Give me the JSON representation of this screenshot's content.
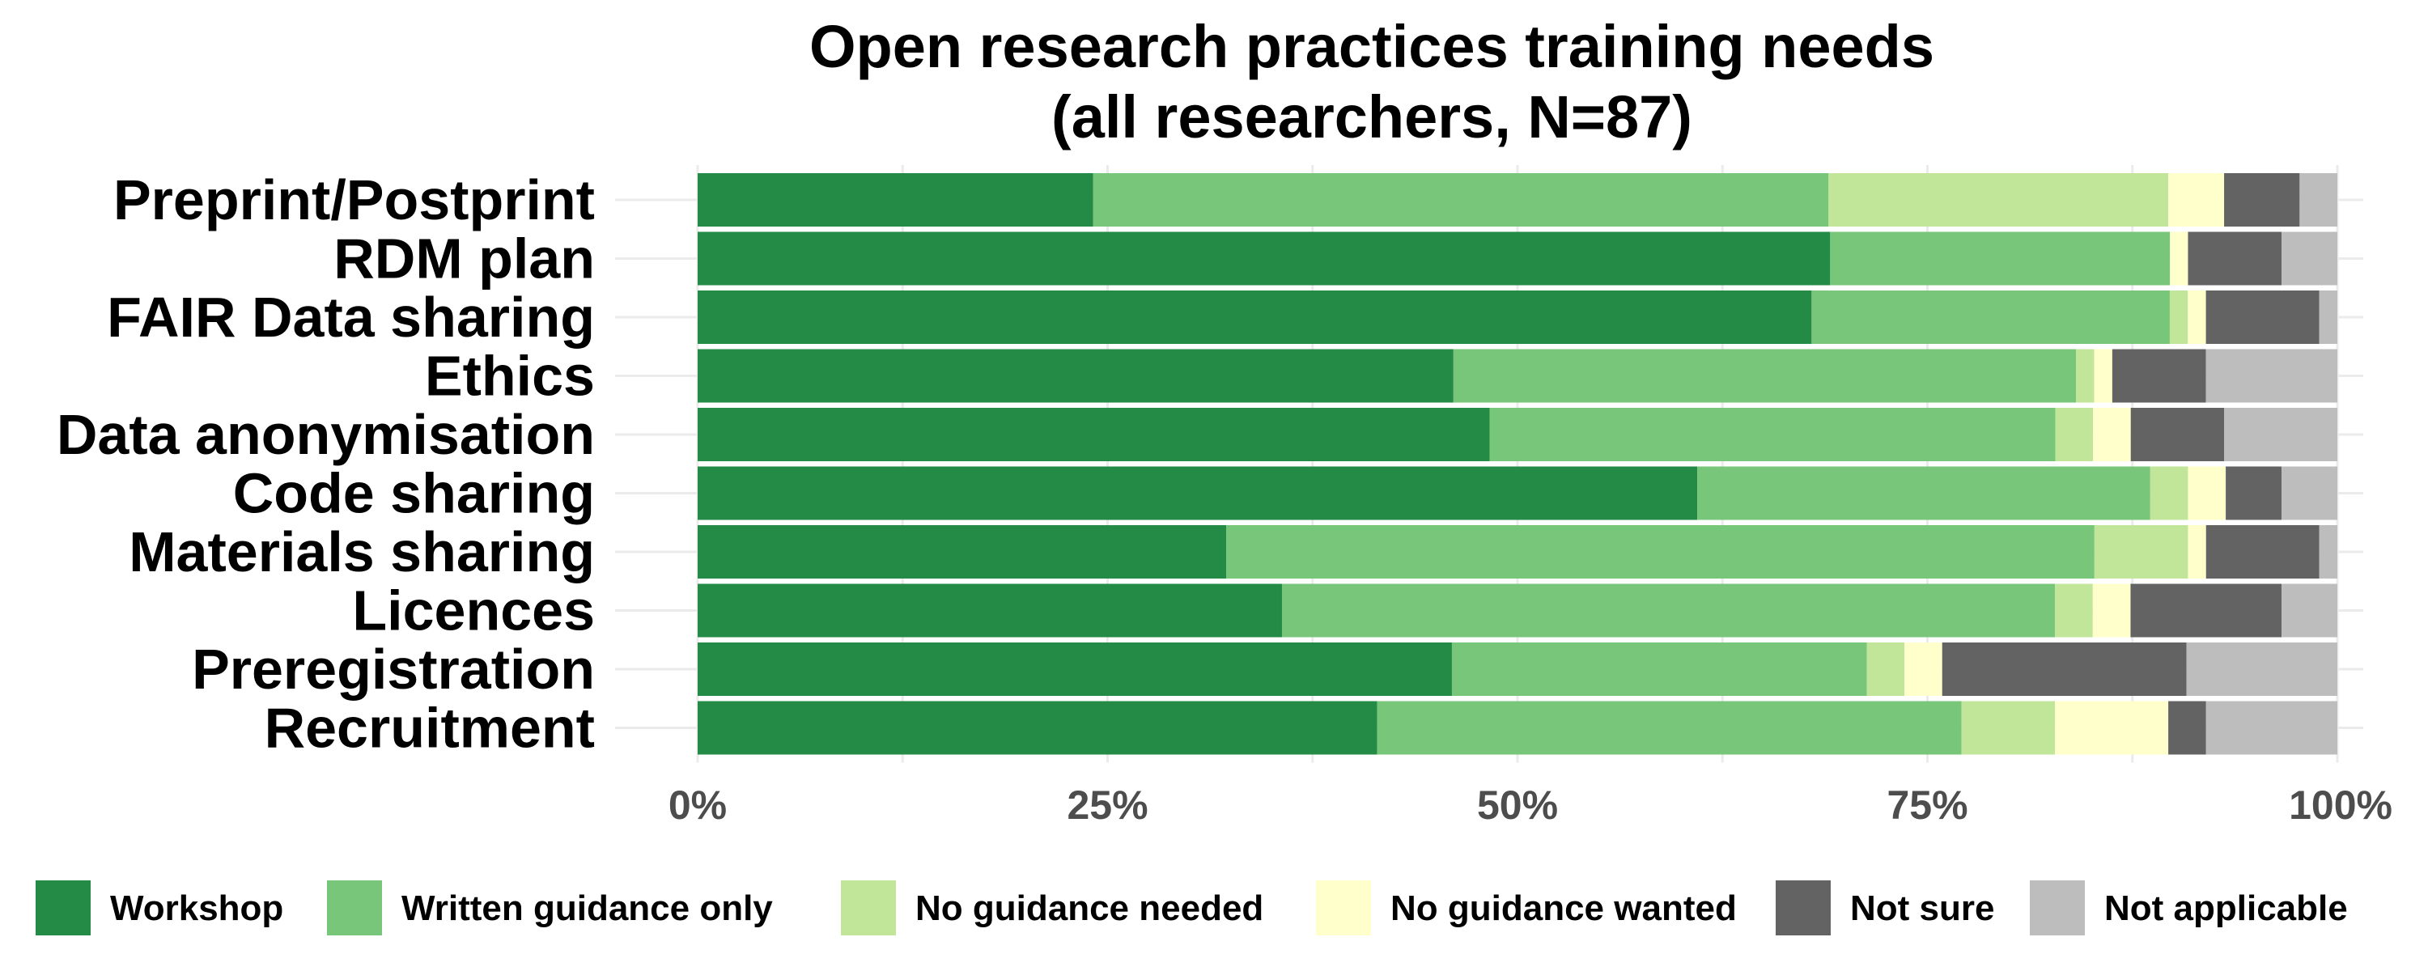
{
  "chart_data": {
    "type": "bar",
    "orientation": "horizontal",
    "stacked": "percent",
    "title": [
      "Open research practices training needs",
      "(all researchers, N=87)"
    ],
    "xlabel": "",
    "ylabel": "",
    "xlim": [
      0,
      100
    ],
    "x_ticks": [
      "0%",
      "25%",
      "50%",
      "75%",
      "100%"
    ],
    "x_tick_values": [
      0,
      25,
      50,
      75,
      100
    ],
    "grid": true,
    "legend_position": "bottom",
    "categories": [
      "Preprint/Postprint",
      "RDM plan",
      "FAIR Data sharing",
      "Ethics",
      "Data anonymisation",
      "Code sharing",
      "Materials sharing",
      "Licences",
      "Preregistration",
      "Recruitment"
    ],
    "series": [
      {
        "name": "Workshop",
        "color": "#238b45",
        "values": [
          24.1,
          69.0,
          67.8,
          46.0,
          48.3,
          60.9,
          32.2,
          35.6,
          46.0,
          41.4
        ]
      },
      {
        "name": "Written guidance only",
        "color": "#78c679",
        "values": [
          44.8,
          20.7,
          21.8,
          37.9,
          34.5,
          27.6,
          52.9,
          47.1,
          25.3,
          35.6
        ]
      },
      {
        "name": "No guidance needed",
        "color": "#c2e699",
        "values": [
          20.7,
          0.0,
          1.1,
          1.1,
          2.3,
          2.3,
          5.7,
          2.3,
          2.3,
          5.7
        ]
      },
      {
        "name": "No guidance wanted",
        "color": "#ffffcc",
        "values": [
          3.4,
          1.1,
          1.1,
          1.1,
          2.3,
          2.3,
          1.1,
          2.3,
          2.3,
          6.9
        ]
      },
      {
        "name": "Not sure",
        "color": "#636363",
        "values": [
          4.6,
          5.7,
          6.9,
          5.7,
          5.7,
          3.4,
          6.9,
          9.2,
          14.9,
          2.3
        ]
      },
      {
        "name": "Not applicable",
        "color": "#bdbdbd",
        "values": [
          2.3,
          3.4,
          1.1,
          8.0,
          6.9,
          3.4,
          1.1,
          3.4,
          9.2,
          8.0
        ]
      }
    ]
  }
}
